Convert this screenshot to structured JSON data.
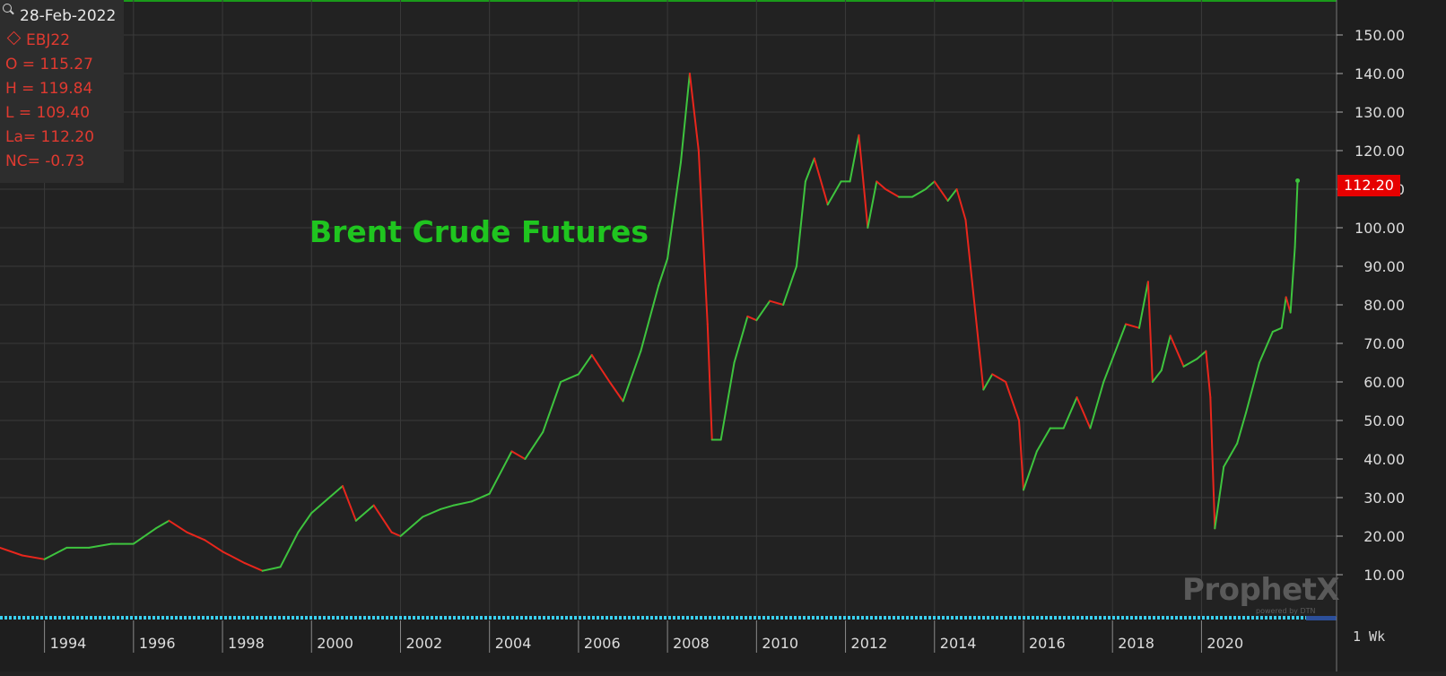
{
  "header": {
    "date": "28-Feb-2022",
    "symbol": "EBJ22",
    "open": "O = 115.27",
    "high": "H = 119.84",
    "low": "L = 109.40",
    "last": "La= 112.20",
    "net_change": "NC= -0.73"
  },
  "colors": {
    "background": "#222222",
    "up": "#3ec43e",
    "down": "#e8261c",
    "title": "#1fc51f",
    "info_text": "#e03a30",
    "price_tag": "#e60000",
    "scrollbar": "#3ad0f0"
  },
  "icons": {
    "search": "search-icon",
    "symbol": "diamond-icon"
  },
  "annotation": "Brent Crude Futures",
  "last_price_tag": "112.20",
  "interval": "1 Wk",
  "watermark": {
    "brand": "ProphetX",
    "sub": "powered by DTN"
  },
  "chart_data": {
    "type": "line",
    "title": "Brent Crude Futures",
    "ylim": [
      0,
      160
    ],
    "y_ticks": [
      "10.00",
      "20.00",
      "30.00",
      "40.00",
      "50.00",
      "60.00",
      "70.00",
      "80.00",
      "90.00",
      "100.00",
      "110.00",
      "120.00",
      "130.00",
      "140.00",
      "150.00"
    ],
    "x_ticks": [
      "1994",
      "1996",
      "1998",
      "2000",
      "2002",
      "2004",
      "2006",
      "2008",
      "2010",
      "2012",
      "2014",
      "2016",
      "2018",
      "2020"
    ],
    "xlim": [
      1993.0,
      2022.35
    ],
    "grid": true,
    "last_value": 112.2,
    "series": [
      {
        "x": [
          1993.0,
          1993.5,
          1994.0,
          1994.5,
          1995.0,
          1995.5,
          1996.0,
          1996.5,
          1996.8,
          1997.2,
          1997.6,
          1998.0,
          1998.5,
          1998.9,
          1999.3,
          1999.7,
          2000.0,
          2000.4,
          2000.7,
          2001.0,
          2001.4,
          2001.8,
          2002.0,
          2002.5,
          2002.9,
          2003.2,
          2003.6,
          2004.0,
          2004.5,
          2004.8,
          2005.2,
          2005.6,
          2006.0,
          2006.3,
          2006.7,
          2007.0,
          2007.4,
          2007.8,
          2008.0,
          2008.3,
          2008.5,
          2008.7,
          2008.9,
          2009.0,
          2009.2,
          2009.5,
          2009.8,
          2010.0,
          2010.3,
          2010.6,
          2010.9,
          2011.1,
          2011.3,
          2011.6,
          2011.9,
          2012.1,
          2012.3,
          2012.5,
          2012.7,
          2012.9,
          2013.2,
          2013.5,
          2013.8,
          2014.0,
          2014.3,
          2014.5,
          2014.7,
          2014.9,
          2015.1,
          2015.3,
          2015.6,
          2015.9,
          2016.0,
          2016.3,
          2016.6,
          2016.9,
          2017.2,
          2017.5,
          2017.8,
          2018.0,
          2018.3,
          2018.6,
          2018.8,
          2018.9,
          2019.1,
          2019.3,
          2019.6,
          2019.9,
          2020.1,
          2020.2,
          2020.3,
          2020.5,
          2020.8,
          2021.0,
          2021.3,
          2021.6,
          2021.8,
          2021.9,
          2022.0,
          2022.1,
          2022.16
        ],
        "y": [
          17,
          15,
          14,
          17,
          17,
          18,
          18,
          22,
          24,
          21,
          19,
          16,
          13,
          11,
          12,
          21,
          26,
          30,
          33,
          24,
          28,
          21,
          20,
          25,
          27,
          28,
          29,
          31,
          42,
          40,
          47,
          60,
          62,
          67,
          60,
          55,
          68,
          85,
          92,
          117,
          140,
          120,
          75,
          45,
          45,
          65,
          77,
          76,
          81,
          80,
          90,
          112,
          118,
          106,
          112,
          112,
          124,
          100,
          112,
          110,
          108,
          108,
          110,
          112,
          107,
          110,
          102,
          80,
          58,
          62,
          60,
          50,
          32,
          42,
          48,
          48,
          56,
          48,
          60,
          66,
          75,
          74,
          86,
          60,
          63,
          72,
          64,
          66,
          68,
          56,
          22,
          38,
          44,
          52,
          65,
          73,
          74,
          82,
          78,
          95,
          112.2
        ]
      }
    ]
  }
}
